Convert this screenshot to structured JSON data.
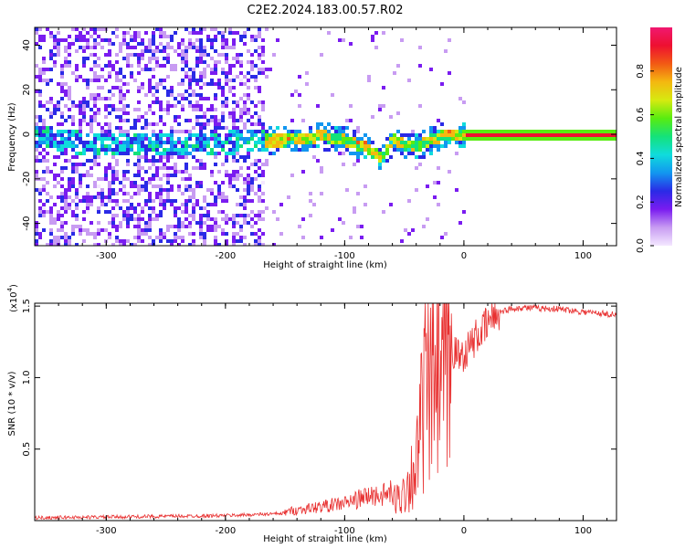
{
  "title": "C2E2.2024.183.00.57.R02",
  "chart_data": [
    {
      "type": "heatmap",
      "xlabel": "Height of straight line (km)",
      "ylabel": "Frequency (Hz)",
      "xlim": [
        -360,
        128
      ],
      "ylim": [
        -50,
        48
      ],
      "x_ticks": [
        -300,
        -200,
        -100,
        0,
        100
      ],
      "x_tick_labels": [
        "-300",
        "-200",
        "-100",
        "0",
        "100"
      ],
      "y_ticks": [
        -40,
        -20,
        0,
        20,
        40
      ],
      "y_tick_labels": [
        "-40",
        "-20",
        "0",
        "20",
        "40"
      ],
      "colorbar": {
        "label": "Normalized spectral amplitude",
        "range": [
          0,
          1
        ],
        "ticks": [
          0.0,
          0.2,
          0.4,
          0.6,
          0.8
        ],
        "tick_labels": [
          "0.0",
          "0.2",
          "0.4",
          "0.6",
          "0.8"
        ],
        "colors": [
          "#f4e8ff",
          "#c89cf2",
          "#7a1cf0",
          "#2a2ae6",
          "#1296f0",
          "#10dcdc",
          "#14e27a",
          "#58ec10",
          "#d6ea10",
          "#f4b810",
          "#f25a14",
          "#ee1030",
          "#f01870"
        ]
      },
      "ridge": {
        "x": [
          -345,
          -300,
          -250,
          -200,
          -170,
          -150,
          -120,
          -100,
          -85,
          -70,
          -60,
          -50,
          -40,
          -30,
          -20,
          -10,
          0,
          128
        ],
        "freq": [
          -2,
          -4,
          -3,
          -3,
          -2,
          -2,
          0,
          -2,
          -5,
          -10,
          -1,
          -5,
          -5,
          -2,
          0,
          1,
          0,
          0
        ]
      }
    },
    {
      "type": "line",
      "xlabel": "Height of straight line (km)",
      "ylabel": "SNR (10 * v/v)",
      "y_exponent_label": "(x10",
      "y_exponent_power": "4",
      "xlim": [
        -360,
        128
      ],
      "ylim": [
        0,
        15200
      ],
      "x_ticks": [
        -300,
        -200,
        -100,
        0,
        100
      ],
      "x_tick_labels": [
        "-300",
        "-200",
        "-100",
        "0",
        "100"
      ],
      "y_ticks": [
        5000,
        10000,
        15000
      ],
      "y_tick_labels": [
        "0.5",
        "1.0",
        "1.5"
      ],
      "color": "#e83030",
      "series": [
        {
          "x": [
            -360,
            -300,
            -250,
            -200,
            -150,
            -130,
            -100,
            -80,
            -65,
            -55,
            -50,
            -45,
            -40,
            -35,
            -32,
            -28,
            -25,
            -20,
            -15,
            -10,
            -5,
            0,
            5,
            10,
            15,
            20,
            25,
            30,
            40,
            50,
            60,
            80,
            100,
            128
          ],
          "values": [
            200,
            250,
            300,
            350,
            500,
            700,
            1000,
            1400,
            1500,
            1800,
            2300,
            3500,
            4500,
            8500,
            11500,
            10000,
            13000,
            11000,
            11500,
            12000,
            11500,
            11700,
            12200,
            12800,
            13200,
            13800,
            14300,
            14600,
            14800,
            14900,
            14850,
            14800,
            14600,
            14400
          ]
        }
      ]
    }
  ]
}
